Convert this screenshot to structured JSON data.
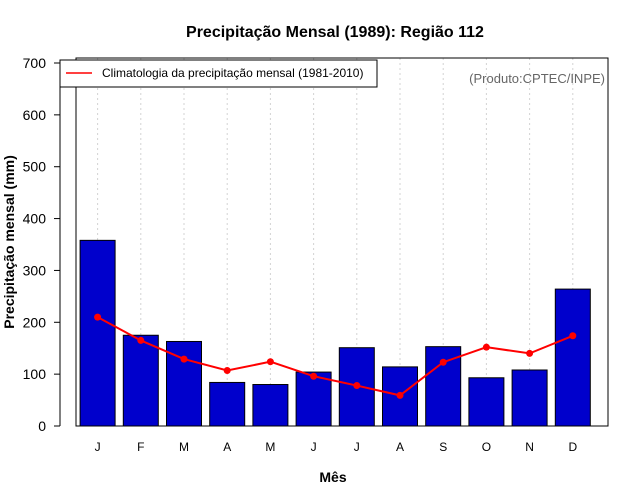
{
  "chart_data": {
    "type": "bar",
    "title": "Precipitação Mensal (1989): Região 112",
    "xlabel": "Mês",
    "ylabel": "Precipitação mensal (mm)",
    "categories": [
      "J",
      "F",
      "M",
      "A",
      "M",
      "J",
      "J",
      "A",
      "S",
      "O",
      "N",
      "D"
    ],
    "ylim": [
      0,
      700
    ],
    "yticks": [
      0,
      100,
      200,
      300,
      400,
      500,
      600,
      700
    ],
    "series": [
      {
        "name": "Precipitação mensal 1989",
        "kind": "bar",
        "color": "#0000cc",
        "values": [
          358,
          175,
          163,
          84,
          80,
          104,
          151,
          114,
          153,
          93,
          108,
          264
        ]
      },
      {
        "name": "Climatologia da precipitação mensal (1981-2010)",
        "kind": "line",
        "color": "#ff0000",
        "values": [
          210,
          165,
          129,
          107,
          124,
          96,
          78,
          59,
          123,
          152,
          140,
          174
        ]
      }
    ],
    "legend": {
      "position": "top-left",
      "entries": [
        "Climatologia da precipitação mensal (1981-2010)"
      ]
    },
    "annotation": "(Produto:CPTEC/INPE)",
    "grid": "vertical dotted"
  }
}
